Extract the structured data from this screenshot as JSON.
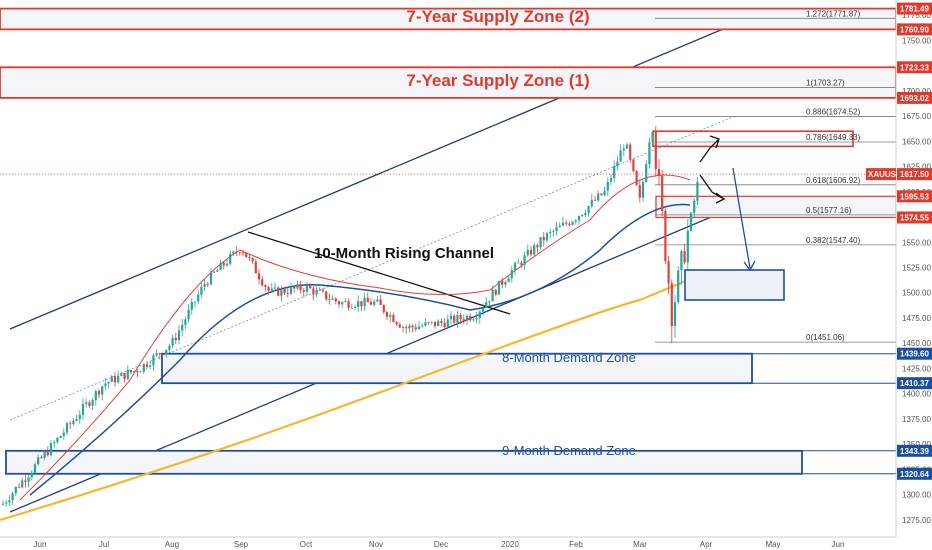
{
  "colors": {
    "up_candle": "#26a69a",
    "down_candle": "#e0403a",
    "supply": "#e03a2f",
    "demand": "#1e4f9c",
    "ma_fast": "#e0403a",
    "ma_mid": "#1e4f9c",
    "ma_slow": "#f5b731",
    "channel": "#1f3f6e",
    "price_line": "#e0403a"
  },
  "annotations": {
    "supply_zone_2": "7-Year Supply Zone (2)",
    "supply_zone_1": "7-Year Supply Zone (1)",
    "demand_zone_8m": "8-Month Demand Zone",
    "demand_zone_9m": "9-Month Demand Zone",
    "channel": "10-Month Rising Channel",
    "symbol": "XAUUSD"
  },
  "chart_data": {
    "type": "candlestick",
    "symbol": "XAUUSD",
    "x_axis": {
      "tick_labels": [
        "Jun",
        "Jul",
        "Aug",
        "Sep",
        "Oct",
        "Nov",
        "Dec",
        "2020",
        "Feb",
        "Mar",
        "Apr",
        "May",
        "Jun"
      ]
    },
    "y_axis": {
      "range": [
        1258,
        1790
      ],
      "tick_labels": [
        1275.0,
        1300.0,
        1325.0,
        1350.0,
        1375.0,
        1400.0,
        1425.0,
        1450.0,
        1475.0,
        1500.0,
        1525.0,
        1550.0,
        1575.0,
        1600.0,
        1625.0,
        1650.0,
        1675.0,
        1700.0,
        1725.0,
        1750.0,
        1775.0
      ]
    },
    "price_tags": [
      {
        "value": "1781.49",
        "color": "red"
      },
      {
        "value": "1760.90",
        "color": "red"
      },
      {
        "value": "1723.33",
        "color": "red"
      },
      {
        "value": "1693.02",
        "color": "red"
      },
      {
        "value": "1617.50",
        "color": "red",
        "label": "XAUUSD"
      },
      {
        "value": "1595.53",
        "color": "red"
      },
      {
        "value": "1574.55",
        "color": "red"
      },
      {
        "value": "1439.60",
        "color": "blue"
      },
      {
        "value": "1410.37",
        "color": "blue"
      },
      {
        "value": "1343.39",
        "color": "blue"
      },
      {
        "value": "1320.64",
        "color": "blue"
      }
    ],
    "fibonacci": [
      {
        "label": "1.272(1771.87)",
        "value": 1771.87
      },
      {
        "label": "1(1703.27)",
        "value": 1703.27
      },
      {
        "label": "0.886(1674.52)",
        "value": 1674.52
      },
      {
        "label": "0.786(1649.33)",
        "value": 1649.33
      },
      {
        "label": "0.618(1606.92)",
        "value": 1606.92
      },
      {
        "label": "0.5(1577.16)",
        "value": 1577.16
      },
      {
        "label": "0.382(1547.40)",
        "value": 1547.4
      },
      {
        "label": "0(1451.06)",
        "value": 1451.06
      }
    ],
    "zones": [
      {
        "name": "7-Year Supply Zone (2)",
        "kind": "supply",
        "range": [
          1760.9,
          1781.49
        ]
      },
      {
        "name": "7-Year Supply Zone (1)",
        "kind": "supply",
        "range": [
          1693.02,
          1723.33
        ]
      },
      {
        "name": "8-Month Demand Zone",
        "kind": "demand",
        "range": [
          1410.37,
          1439.6
        ]
      },
      {
        "name": "9-Month Demand Zone",
        "kind": "demand",
        "range": [
          1320.64,
          1343.39
        ]
      }
    ],
    "current_price": 1617.5,
    "close_path": [
      {
        "x": "Jun",
        "y": 1290
      },
      {
        "x": "mid-Jun",
        "y": 1340
      },
      {
        "x": "Jul",
        "y": 1410
      },
      {
        "x": "mid-Jul",
        "y": 1425
      },
      {
        "x": "Aug",
        "y": 1450
      },
      {
        "x": "mid-Aug",
        "y": 1510
      },
      {
        "x": "Sep",
        "y": 1545
      },
      {
        "x": "mid-Sep",
        "y": 1500
      },
      {
        "x": "Oct",
        "y": 1505
      },
      {
        "x": "mid-Oct",
        "y": 1490
      },
      {
        "x": "Nov",
        "y": 1490
      },
      {
        "x": "mid-Nov",
        "y": 1465
      },
      {
        "x": "Dec",
        "y": 1470
      },
      {
        "x": "mid-Dec",
        "y": 1478
      },
      {
        "x": "2020",
        "y": 1520
      },
      {
        "x": "mid-Jan",
        "y": 1555
      },
      {
        "x": "Feb",
        "y": 1575
      },
      {
        "x": "mid-Feb",
        "y": 1600
      },
      {
        "x": "late-Feb",
        "y": 1650
      },
      {
        "x": "Mar",
        "y": 1590
      },
      {
        "x": "early-Mar",
        "y": 1670
      },
      {
        "x": "mid-Mar",
        "y": 1480
      },
      {
        "x": "late-Mar",
        "y": 1620
      }
    ]
  }
}
